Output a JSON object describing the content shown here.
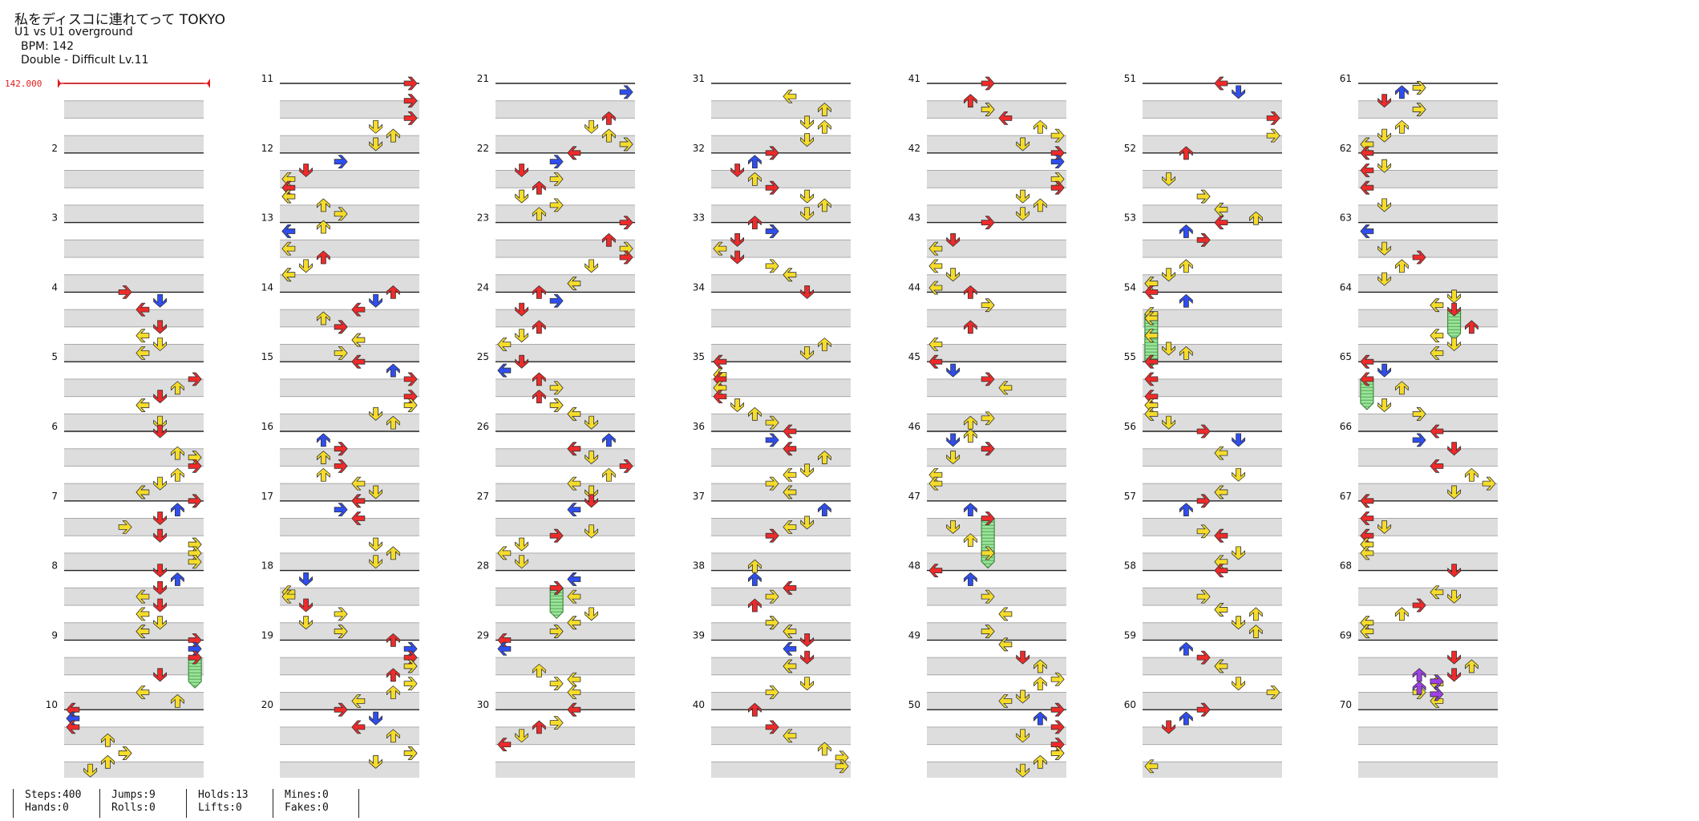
{
  "song": {
    "title": "私をディスコに連れてって TOKYO",
    "subtitle": "U1 vs U1 overground",
    "bpm_label": "BPM: 142",
    "difficulty_label": "Double - Difficult Lv.11"
  },
  "bpm_marker": "142.000",
  "measures": [
    "2",
    "3",
    "4",
    "5",
    "6",
    "7",
    "8",
    "9",
    "10",
    "11",
    "12",
    "13",
    "14",
    "15",
    "16",
    "17",
    "18",
    "19",
    "20",
    "21",
    "22",
    "23",
    "24",
    "25",
    "26",
    "27",
    "28",
    "29",
    "30",
    "31",
    "32",
    "33",
    "34",
    "35",
    "36",
    "37",
    "38",
    "39",
    "40",
    "41",
    "42",
    "43",
    "44",
    "45",
    "46",
    "47",
    "48",
    "49",
    "50",
    "51",
    "52",
    "53",
    "54",
    "55",
    "56",
    "57",
    "58",
    "59",
    "60",
    "61",
    "62",
    "63",
    "64",
    "65",
    "66",
    "67",
    "68",
    "69",
    "70"
  ],
  "stats": [
    {
      "a": "Steps:400",
      "b": "Hands:0"
    },
    {
      "a": "Jumps:9",
      "b": "Rolls:0"
    },
    {
      "a": "Holds:13",
      "b": "Lifts:0"
    },
    {
      "a": "Mines:0",
      "b": "Fakes:0"
    }
  ],
  "colors": {
    "quarter": "#ee2a2a",
    "eighth": "#2f4ef0",
    "sixteenth": "#f5dc2a",
    "twentyfourth": "#a040e8",
    "hold": "#8ee08e",
    "bpm": "#e31b1b",
    "stripe": "#dddddd",
    "line_major": "#222222",
    "line_minor": "#aaaaaa"
  }
}
